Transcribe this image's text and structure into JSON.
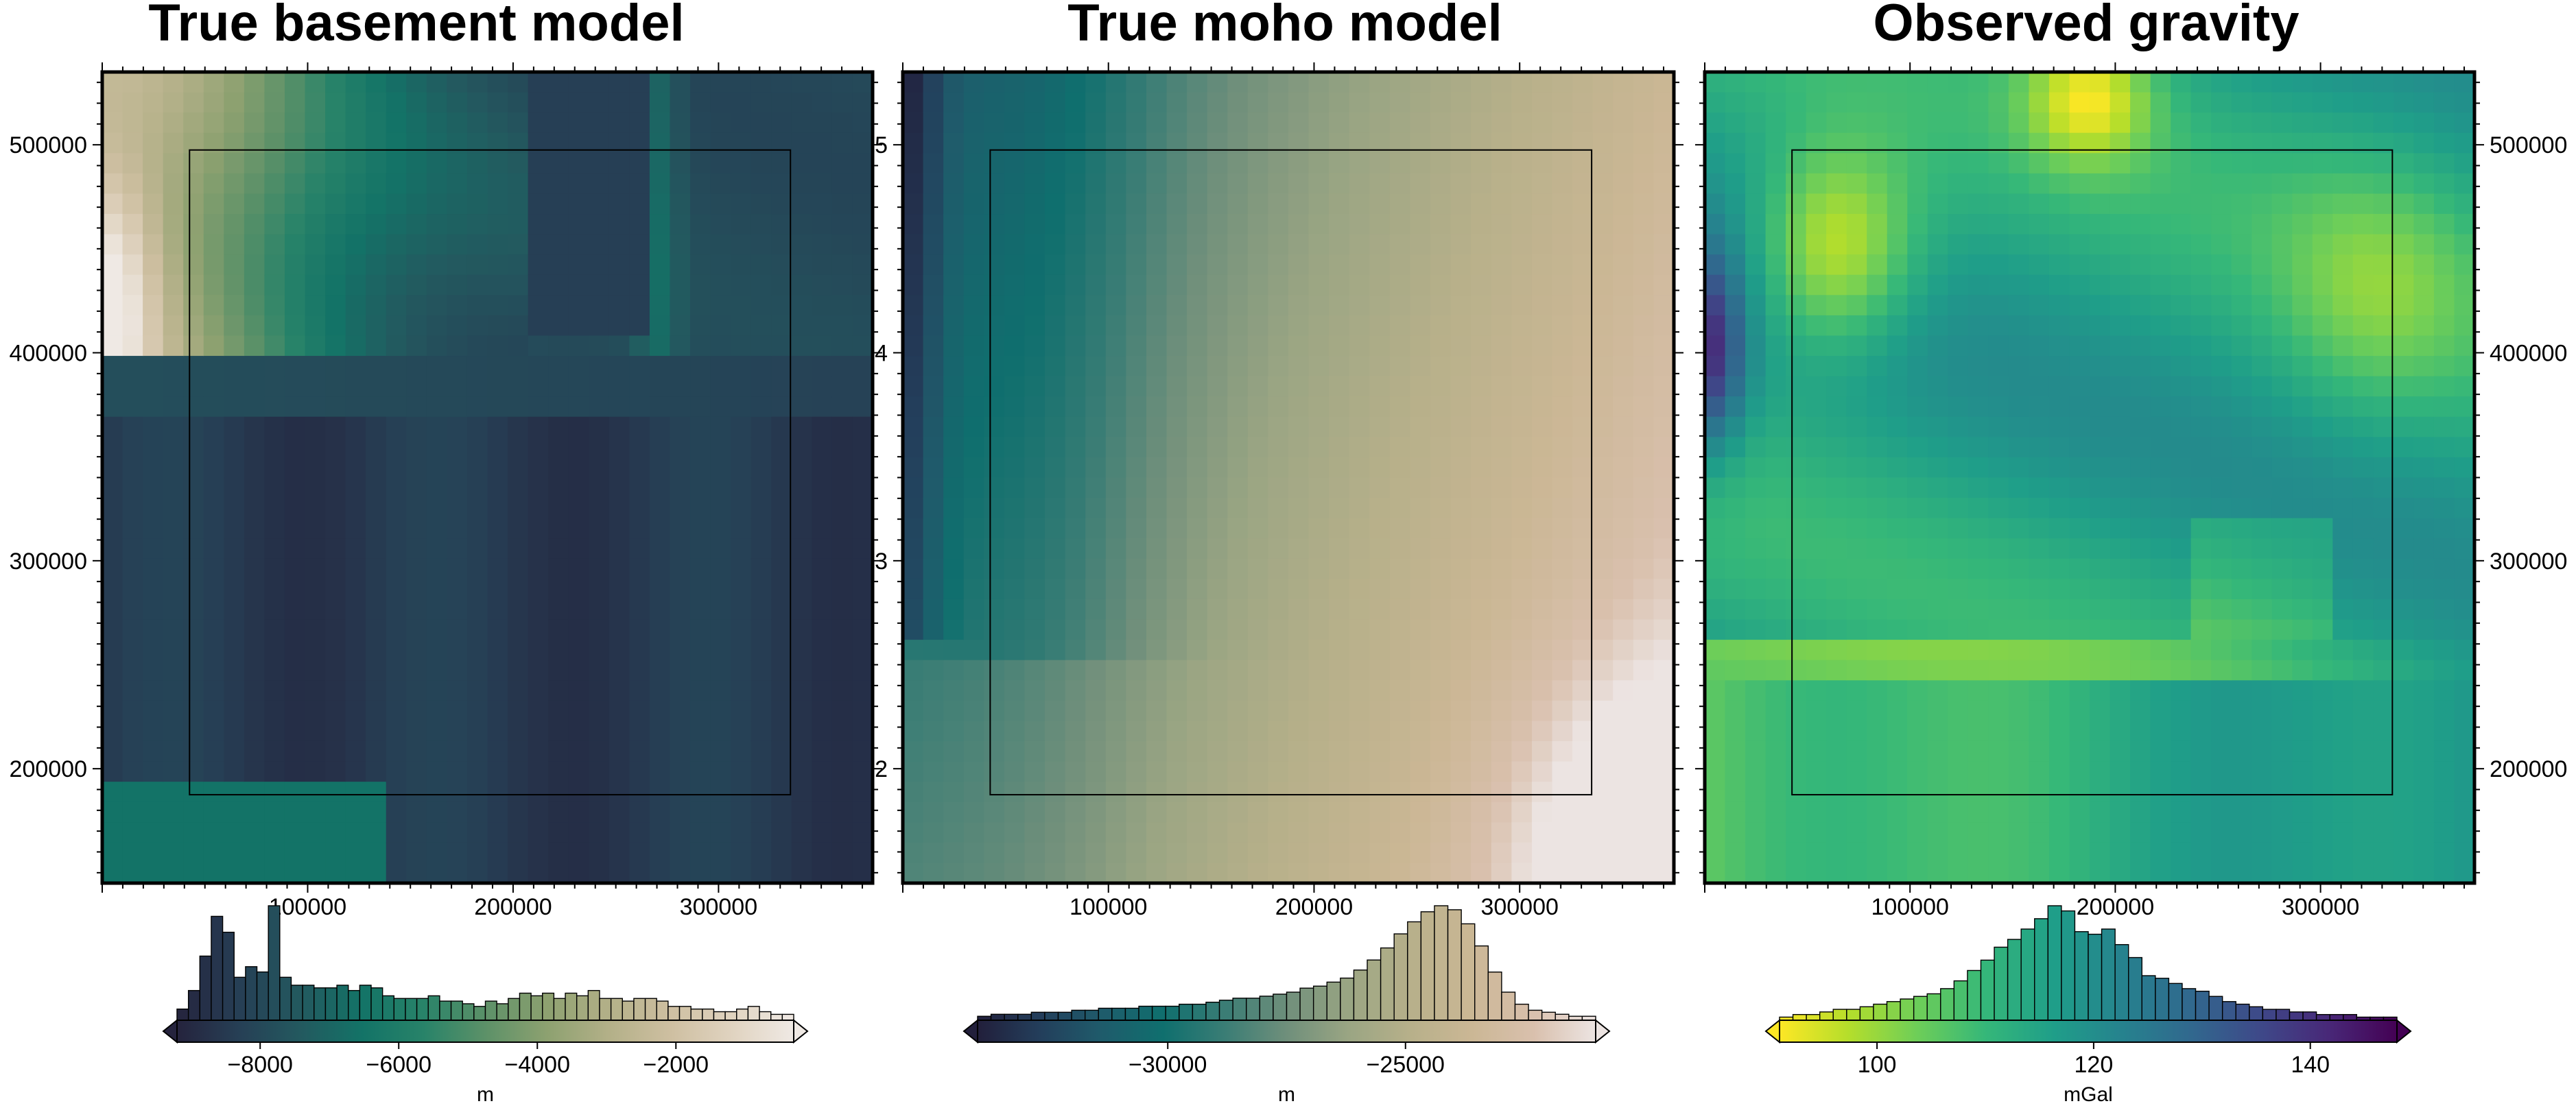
{
  "chart_data": [
    {
      "type": "heatmap",
      "title": "True basement model",
      "x_ticks": [
        "100000",
        "200000",
        "300000"
      ],
      "y_ticks": [
        "500000",
        "400000",
        "300000",
        "200000"
      ],
      "xlim": [
        0,
        375000
      ],
      "ylim": [
        145000,
        535000
      ],
      "inner_region": {
        "x": [
          42500,
          335000
        ],
        "y": [
          187500,
          497500
        ]
      },
      "grid_description": "western high ridge, thick-eastern trough and low southern strip",
      "colormap": "rain",
      "colorbar": {
        "label": "m",
        "ticks": [
          -8000,
          -6000,
          -4000,
          -2000
        ],
        "tick_labels": [
          "−8000",
          "−6000",
          "−4000",
          "−2000"
        ],
        "range": [
          -9200,
          -300
        ],
        "triangles": true
      },
      "histogram": [
        0.05,
        0.12,
        0.25,
        0.4,
        0.34,
        0.17,
        0.21,
        0.19,
        0.44,
        0.17,
        0.14,
        0.14,
        0.13,
        0.13,
        0.14,
        0.12,
        0.14,
        0.13,
        0.1,
        0.09,
        0.09,
        0.09,
        0.1,
        0.08,
        0.08,
        0.07,
        0.06,
        0.08,
        0.07,
        0.09,
        0.11,
        0.1,
        0.11,
        0.09,
        0.11,
        0.1,
        0.12,
        0.09,
        0.09,
        0.08,
        0.09,
        0.09,
        0.08,
        0.06,
        0.06,
        0.05,
        0.05,
        0.04,
        0.04,
        0.05,
        0.06,
        0.04,
        0.03,
        0.03
      ],
      "histogram_max": 0.44
    },
    {
      "type": "heatmap",
      "title": "True moho model",
      "x_ticks": [
        "100000",
        "200000",
        "300000"
      ],
      "y_ticks": [
        "5",
        "4",
        "3",
        "2"
      ],
      "xlim": [
        0,
        375000
      ],
      "ylim": [
        145000,
        535000
      ],
      "inner_region": {
        "x": [
          42500,
          335000
        ],
        "y": [
          187500,
          497500
        ]
      },
      "colormap": "earth",
      "colorbar": {
        "label": "m",
        "ticks": [
          -30000,
          -25000
        ],
        "tick_labels": [
          "−30000",
          "−25000"
        ],
        "range": [
          -34000,
          -21000
        ],
        "triangles": true
      },
      "histogram": [
        0.03,
        0.04,
        0.04,
        0.04,
        0.05,
        0.05,
        0.05,
        0.06,
        0.06,
        0.07,
        0.07,
        0.07,
        0.08,
        0.08,
        0.08,
        0.09,
        0.09,
        0.1,
        0.11,
        0.12,
        0.12,
        0.13,
        0.14,
        0.15,
        0.17,
        0.18,
        0.2,
        0.22,
        0.26,
        0.31,
        0.37,
        0.44,
        0.5,
        0.55,
        0.58,
        0.56,
        0.49,
        0.38,
        0.25,
        0.15,
        0.09,
        0.06,
        0.05,
        0.04,
        0.03,
        0.03
      ],
      "histogram_max": 0.58
    },
    {
      "type": "heatmap",
      "title": "Observed gravity",
      "x_ticks": [
        "100000",
        "200000",
        "300000"
      ],
      "y_ticks": [
        "500000",
        "400000",
        "300000",
        "200000"
      ],
      "xlim": [
        0,
        375000
      ],
      "ylim": [
        145000,
        535000
      ],
      "inner_region": {
        "x": [
          42500,
          335000
        ],
        "y": [
          187500,
          497500
        ]
      },
      "colormap": "viridis_reversed",
      "colorbar": {
        "label": "mGal",
        "ticks": [
          100,
          120,
          140
        ],
        "tick_labels": [
          "100",
          "120",
          "140"
        ],
        "range": [
          91,
          148
        ],
        "triangles": true
      },
      "histogram": [
        0.02,
        0.03,
        0.03,
        0.04,
        0.05,
        0.05,
        0.06,
        0.07,
        0.08,
        0.09,
        0.1,
        0.11,
        0.13,
        0.16,
        0.2,
        0.24,
        0.29,
        0.32,
        0.36,
        0.4,
        0.45,
        0.43,
        0.35,
        0.34,
        0.36,
        0.3,
        0.25,
        0.18,
        0.17,
        0.15,
        0.13,
        0.12,
        0.1,
        0.08,
        0.07,
        0.06,
        0.05,
        0.05,
        0.04,
        0.04,
        0.03,
        0.03,
        0.03,
        0.02,
        0.02,
        0.02
      ],
      "histogram_max": 0.45
    }
  ],
  "colors": {
    "rain": [
      "#25233d",
      "#263f55",
      "#23595f",
      "#137367",
      "#288369",
      "#5c9168",
      "#8da170",
      "#b3b088",
      "#cebfa1",
      "#e0d3c0",
      "#efe9e4"
    ],
    "earth": [
      "#221f3b",
      "#233e5b",
      "#1f5b6b",
      "#0f6f6e",
      "#3a7d75",
      "#6f8f7b",
      "#9aa583",
      "#b7b08a",
      "#cbb795",
      "#d9c0ad",
      "#ece4e2"
    ],
    "viridis_reversed": [
      "#fde725",
      "#b5de2b",
      "#6ece58",
      "#35b779",
      "#1f9e89",
      "#26828e",
      "#31688e",
      "#3e4989",
      "#482878",
      "#440154"
    ],
    "frame": "#000000"
  }
}
